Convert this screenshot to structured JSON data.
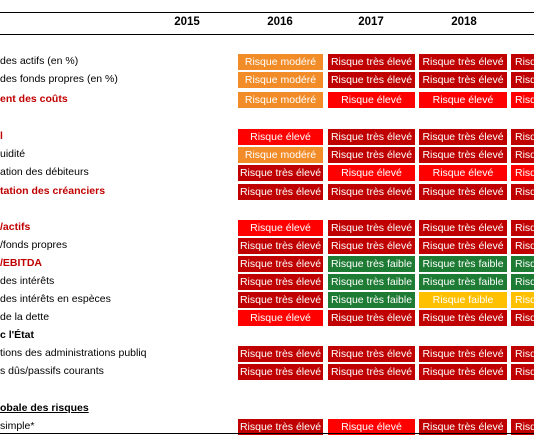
{
  "header": {
    "years": [
      "2015",
      "2016",
      "2017",
      "2018"
    ]
  },
  "colors": {
    "modere": "#f28c28",
    "tres_eleve": "#c00000",
    "eleve": "#ff0000",
    "tres_faible": "#1e7b34",
    "faible": "#ffc000",
    "label_red": "#c00000"
  },
  "rows": [
    {
      "label": "des actifs (en %)",
      "style": "",
      "cells": [
        {
          "text": "Risque modéré",
          "level": "modere"
        },
        {
          "text": "Risque très élevé",
          "level": "tres_eleve"
        },
        {
          "text": "Risque très élevé",
          "level": "tres_eleve"
        },
        {
          "text": "Risque très élevé",
          "level": "tres_eleve"
        }
      ]
    },
    {
      "label": "des fonds propres (en %)",
      "style": "",
      "cells": [
        {
          "text": "Risque modéré",
          "level": "modere"
        },
        {
          "text": "Risque très élevé",
          "level": "tres_eleve"
        },
        {
          "text": "Risque très élevé",
          "level": "tres_eleve"
        },
        {
          "text": "Risque très élevé",
          "level": "tres_eleve"
        }
      ]
    },
    {
      "label": "ent des coûts",
      "style": "bold red",
      "cells": [
        {
          "text": "Risque modéré",
          "level": "modere"
        },
        {
          "text": "Risque élevé",
          "level": "eleve"
        },
        {
          "text": "Risque élevé",
          "level": "eleve"
        },
        {
          "text": "Risque élevé",
          "level": "eleve"
        }
      ]
    },
    {
      "label": "l",
      "style": "bold red",
      "cells": [
        {
          "text": "Risque élevé",
          "level": "eleve"
        },
        {
          "text": "Risque très élevé",
          "level": "tres_eleve"
        },
        {
          "text": "Risque très élevé",
          "level": "tres_eleve"
        },
        {
          "text": "Risque très élevé",
          "level": "tres_eleve"
        }
      ]
    },
    {
      "label": "uidité",
      "style": "",
      "cells": [
        {
          "text": "Risque modéré",
          "level": "modere"
        },
        {
          "text": "Risque très élevé",
          "level": "tres_eleve"
        },
        {
          "text": "Risque très élevé",
          "level": "tres_eleve"
        },
        {
          "text": "Risque très élevé",
          "level": "tres_eleve"
        }
      ]
    },
    {
      "label": "ation des débiteurs",
      "style": "",
      "cells": [
        {
          "text": "Risque très élevé",
          "level": "tres_eleve"
        },
        {
          "text": "Risque élevé",
          "level": "eleve"
        },
        {
          "text": "Risque élevé",
          "level": "eleve"
        },
        {
          "text": "Risque élevé",
          "level": "eleve"
        }
      ]
    },
    {
      "label": "tation des créanciers",
      "style": "bold red",
      "cells": [
        {
          "text": "Risque très élevé",
          "level": "tres_eleve"
        },
        {
          "text": "Risque très élevé",
          "level": "tres_eleve"
        },
        {
          "text": "Risque très élevé",
          "level": "tres_eleve"
        },
        {
          "text": "Risque très élevé",
          "level": "tres_eleve"
        }
      ]
    },
    {
      "label": "/actifs",
      "style": "bold red",
      "cells": [
        {
          "text": "Risque élevé",
          "level": "eleve"
        },
        {
          "text": "Risque très élevé",
          "level": "tres_eleve"
        },
        {
          "text": "Risque très élevé",
          "level": "tres_eleve"
        },
        {
          "text": "Risque très élevé",
          "level": "tres_eleve"
        }
      ]
    },
    {
      "label": "/fonds propres",
      "style": "",
      "cells": [
        {
          "text": "Risque très élevé",
          "level": "tres_eleve"
        },
        {
          "text": "Risque très élevé",
          "level": "tres_eleve"
        },
        {
          "text": "Risque très élevé",
          "level": "tres_eleve"
        },
        {
          "text": "Risque très élevé",
          "level": "tres_eleve"
        }
      ]
    },
    {
      "label": "/EBITDA",
      "style": "bold red",
      "cells": [
        {
          "text": "Risque très élevé",
          "level": "tres_eleve"
        },
        {
          "text": "Risque très faible",
          "level": "tres_faible"
        },
        {
          "text": "Risque très faible",
          "level": "tres_faible"
        },
        {
          "text": "Risque très faible",
          "level": "tres_faible"
        }
      ]
    },
    {
      "label": "des intérêts",
      "style": "",
      "cells": [
        {
          "text": "Risque très élevé",
          "level": "tres_eleve"
        },
        {
          "text": "Risque très faible",
          "level": "tres_faible"
        },
        {
          "text": "Risque très faible",
          "level": "tres_faible"
        },
        {
          "text": "Risque très faible",
          "level": "tres_faible"
        }
      ]
    },
    {
      "label": "des intérêts en espèces",
      "style": "",
      "cells": [
        {
          "text": "Risque très élevé",
          "level": "tres_eleve"
        },
        {
          "text": "Risque très faible",
          "level": "tres_faible"
        },
        {
          "text": "Risque faible",
          "level": "faible"
        },
        {
          "text": "Risque faible",
          "level": "faible"
        }
      ]
    },
    {
      "label": "de la dette",
      "style": "",
      "cells": [
        {
          "text": "Risque élevé",
          "level": "eleve"
        },
        {
          "text": "Risque très élevé",
          "level": "tres_eleve"
        },
        {
          "text": "Risque très élevé",
          "level": "tres_eleve"
        },
        {
          "text": "Risque très élevé",
          "level": "tres_eleve"
        }
      ]
    },
    {
      "label": "c l'État",
      "style": "bold",
      "cells": []
    },
    {
      "label": "tions des administrations publiq",
      "style": "",
      "cells": [
        {
          "text": "Risque très élevé",
          "level": "tres_eleve"
        },
        {
          "text": "Risque très élevé",
          "level": "tres_eleve"
        },
        {
          "text": "Risque très élevé",
          "level": "tres_eleve"
        },
        {
          "text": "Risque très élevé",
          "level": "tres_eleve"
        }
      ]
    },
    {
      "label": "s dûs/passifs courants",
      "style": "",
      "cells": [
        {
          "text": "Risque très élevé",
          "level": "tres_eleve"
        },
        {
          "text": "Risque très élevé",
          "level": "tres_eleve"
        },
        {
          "text": "Risque très élevé",
          "level": "tres_eleve"
        },
        {
          "text": "Risque très élevé",
          "level": "tres_eleve"
        }
      ]
    },
    {
      "label": "obale des risques",
      "style": "bold ul",
      "cells": []
    },
    {
      "label": "simple*",
      "style": "",
      "cells": [
        {
          "text": "Risque très élevé",
          "level": "tres_eleve"
        },
        {
          "text": "Risque élevé",
          "level": "eleve"
        },
        {
          "text": "Risque très élevé",
          "level": "tres_eleve"
        },
        {
          "text": "Risque très élevé",
          "level": "tres_eleve"
        }
      ]
    }
  ]
}
